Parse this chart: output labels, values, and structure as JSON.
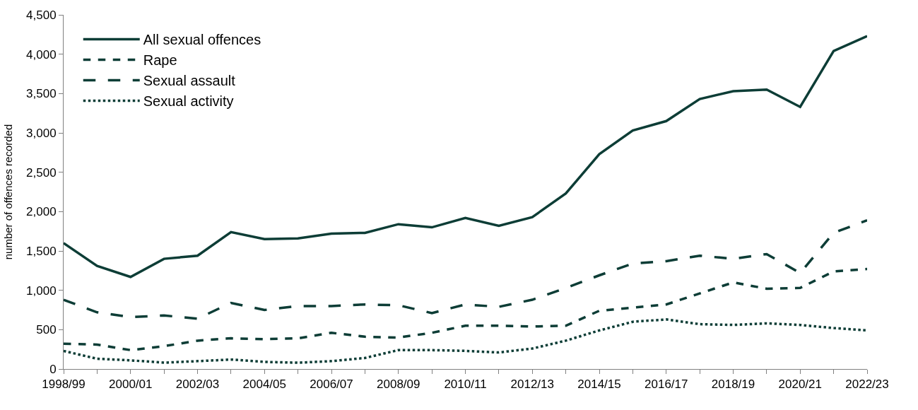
{
  "chart_data": {
    "type": "line",
    "ylabel": "number of offences recorded",
    "categories": [
      "1998/99",
      null,
      "2000/01",
      null,
      "2002/03",
      null,
      "2004/05",
      null,
      "2006/07",
      null,
      "2008/09",
      null,
      "2010/11",
      null,
      "2012/13",
      null,
      "2014/15",
      null,
      "2016/17",
      null,
      "2018/19",
      null,
      "2020/21",
      null,
      "2022/23"
    ],
    "series": [
      {
        "name": "All sexual offences",
        "color": "#0d3d36",
        "line_style": "solid",
        "values": [
          1600,
          1310,
          1170,
          1400,
          1440,
          1740,
          1650,
          1660,
          1720,
          1730,
          1840,
          1800,
          1920,
          1820,
          1930,
          2230,
          2730,
          3030,
          3150,
          3430,
          3530,
          3550,
          3330,
          4040,
          4230
        ]
      },
      {
        "name": "Rape",
        "color": "#0d3d36",
        "line_style": "dashed",
        "values": [
          320,
          310,
          240,
          290,
          360,
          390,
          380,
          390,
          460,
          410,
          400,
          460,
          550,
          550,
          540,
          550,
          740,
          780,
          820,
          960,
          1100,
          1020,
          1030,
          1240,
          1270
        ]
      },
      {
        "name": "Sexual assault",
        "color": "#0d3d36",
        "line_style": "longdash",
        "values": [
          880,
          720,
          660,
          680,
          640,
          840,
          750,
          800,
          800,
          820,
          810,
          710,
          820,
          790,
          880,
          1030,
          1190,
          1340,
          1370,
          1440,
          1400,
          1460,
          1220,
          1730,
          1890
        ]
      },
      {
        "name": "Sexual activity",
        "color": "#0d3d36",
        "line_style": "dotted",
        "values": [
          230,
          130,
          110,
          80,
          100,
          120,
          90,
          80,
          100,
          140,
          240,
          240,
          230,
          210,
          260,
          360,
          490,
          600,
          630,
          570,
          560,
          580,
          560,
          520,
          490
        ]
      }
    ],
    "ylim": [
      0,
      4500
    ],
    "yticks": [
      {
        "value": 0,
        "label": "0"
      },
      {
        "value": 500,
        "label": "500"
      },
      {
        "value": 1000,
        "label": "1,000"
      },
      {
        "value": 1500,
        "label": "1,500"
      },
      {
        "value": 2000,
        "label": "2,000"
      },
      {
        "value": 2500,
        "label": "2,500"
      },
      {
        "value": 3000,
        "label": "3,000"
      },
      {
        "value": 3500,
        "label": "3,500"
      },
      {
        "value": 4000,
        "label": "4,000"
      },
      {
        "value": 4500,
        "label": "4,500"
      }
    ],
    "legend": "top left",
    "marker": "none"
  }
}
